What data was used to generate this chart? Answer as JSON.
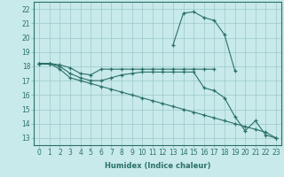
{
  "xlabel": "Humidex (Indice chaleur)",
  "background_color": "#c8eaea",
  "grid_color": "#9cc8c8",
  "line_color": "#2a7068",
  "x_hours": [
    0,
    1,
    2,
    3,
    4,
    5,
    6,
    7,
    8,
    9,
    10,
    11,
    12,
    13,
    14,
    15,
    16,
    17,
    18,
    19,
    20,
    21,
    22,
    23
  ],
  "line1": [
    18.2,
    18.2,
    18.1,
    17.9,
    17.5,
    17.4,
    17.8,
    17.8,
    17.8,
    17.8,
    17.8,
    17.8,
    17.8,
    17.8,
    17.8,
    17.8,
    17.8,
    17.8,
    null,
    null,
    null,
    null,
    null,
    null
  ],
  "line2": [
    18.2,
    18.2,
    null,
    null,
    null,
    null,
    null,
    null,
    null,
    null,
    null,
    null,
    null,
    19.5,
    21.7,
    21.8,
    21.4,
    21.2,
    20.2,
    17.7,
    null,
    null,
    null,
    null
  ],
  "line3": [
    18.2,
    18.2,
    18.0,
    17.5,
    17.2,
    17.0,
    17.0,
    17.2,
    17.4,
    17.5,
    17.6,
    17.6,
    17.6,
    17.6,
    17.6,
    17.6,
    16.5,
    16.3,
    15.8,
    14.5,
    13.5,
    14.2,
    13.2,
    13.0
  ],
  "line4": [
    18.2,
    18.2,
    17.8,
    17.2,
    17.0,
    16.8,
    16.6,
    16.4,
    16.2,
    16.0,
    15.8,
    15.6,
    15.4,
    15.2,
    15.0,
    14.8,
    14.6,
    14.4,
    14.2,
    14.0,
    13.8,
    13.6,
    13.4,
    13.0
  ],
  "xlim": [
    -0.5,
    23.5
  ],
  "ylim": [
    12.5,
    22.5
  ],
  "yticks": [
    13,
    14,
    15,
    16,
    17,
    18,
    19,
    20,
    21,
    22
  ],
  "xticks": [
    0,
    1,
    2,
    3,
    4,
    5,
    6,
    7,
    8,
    9,
    10,
    11,
    12,
    13,
    14,
    15,
    16,
    17,
    18,
    19,
    20,
    21,
    22,
    23
  ]
}
